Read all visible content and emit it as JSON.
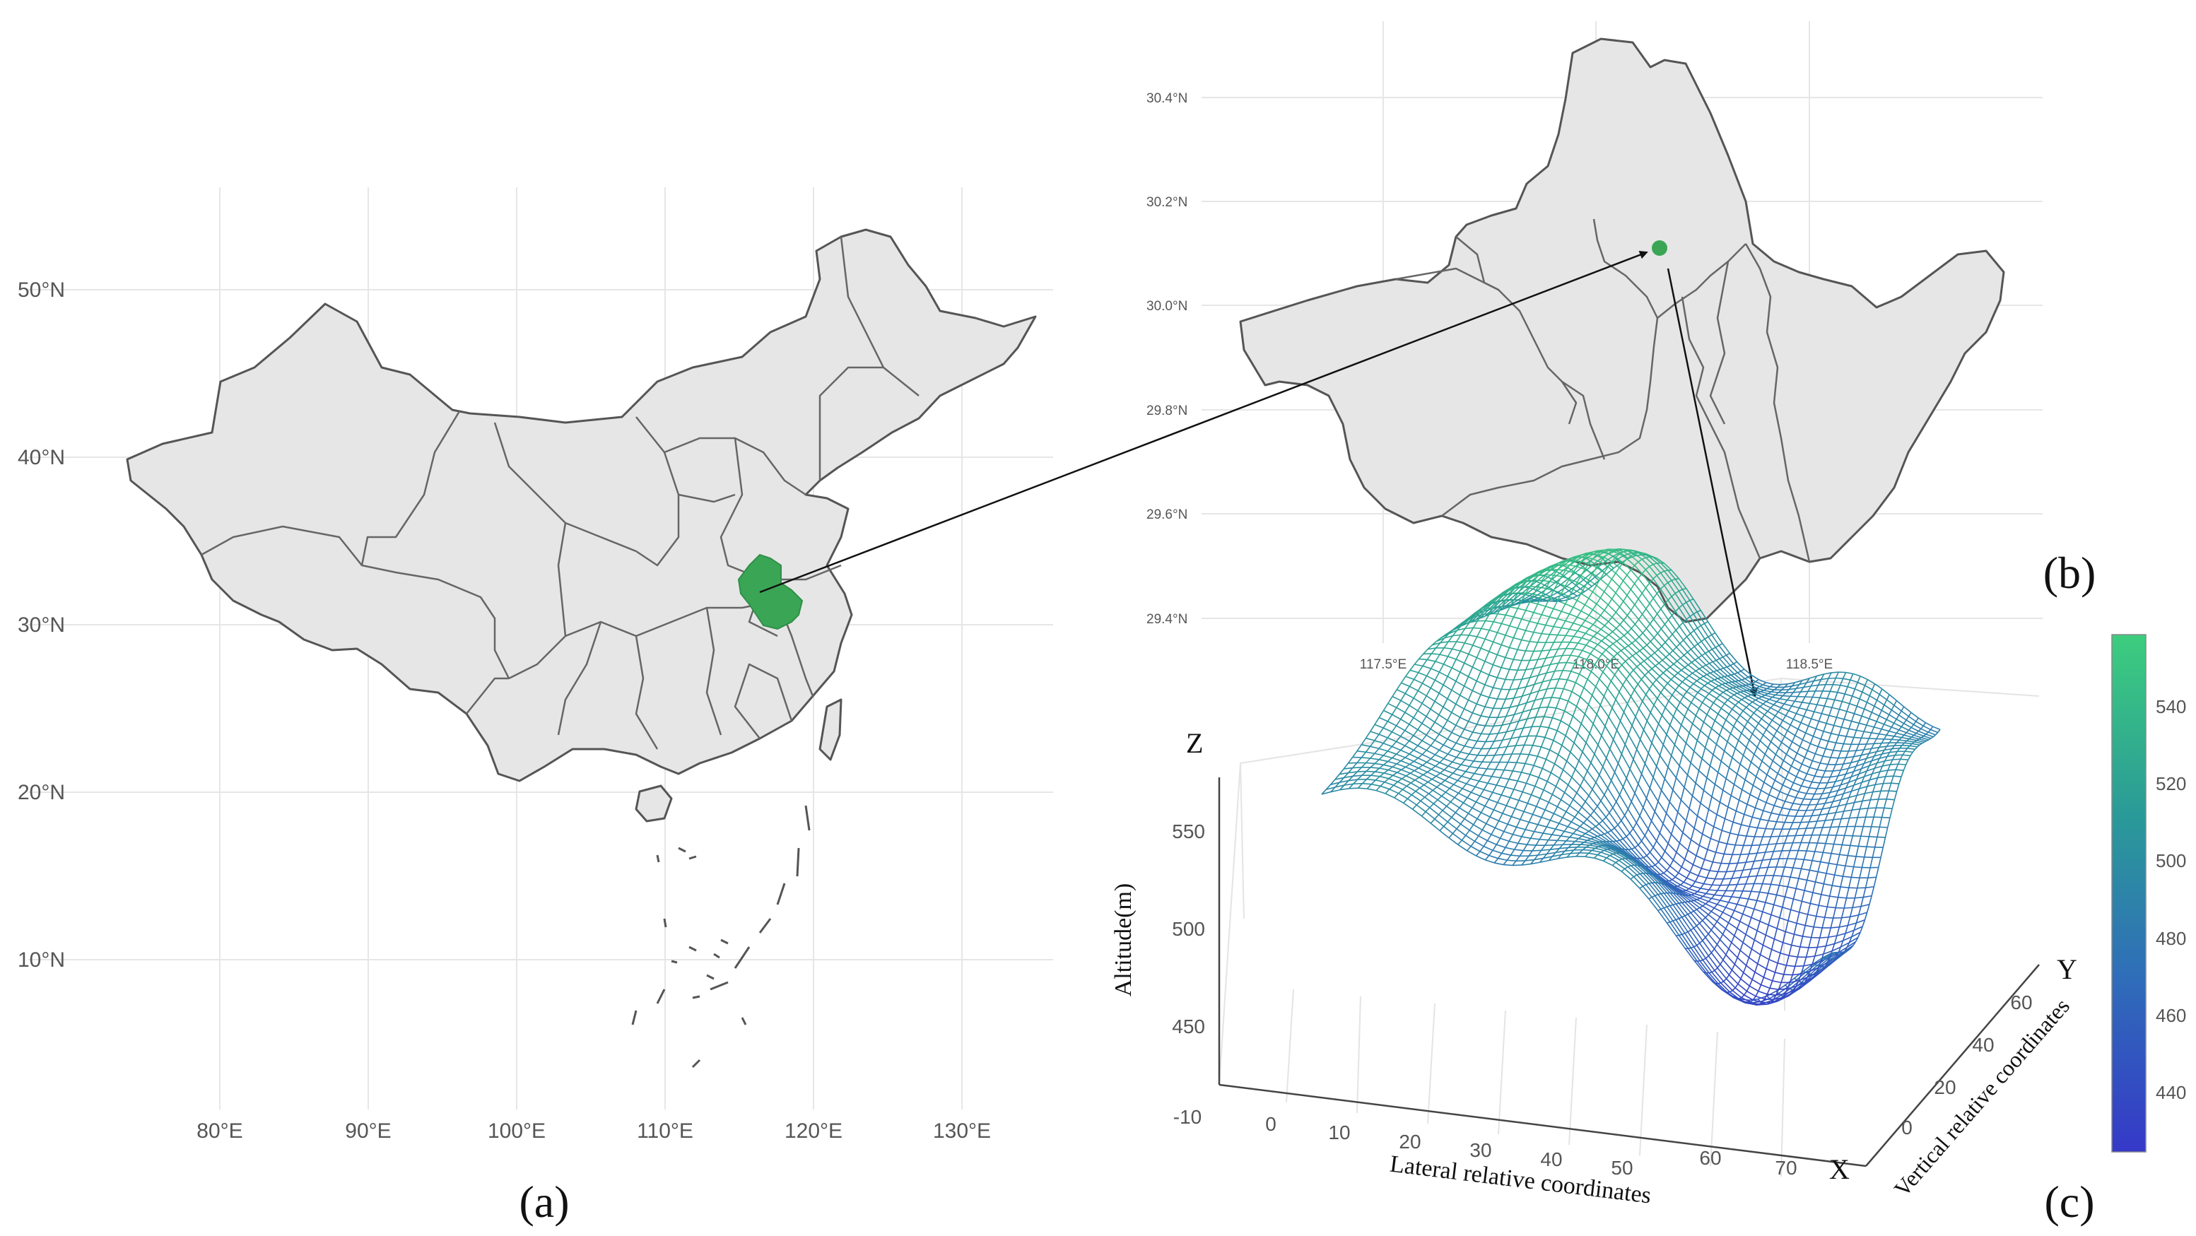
{
  "panel_a": {
    "label": "(a)",
    "lat_ticks": [
      "50°N",
      "40°N",
      "30°N",
      "20°N",
      "10°N"
    ],
    "lon_ticks": [
      "80°E",
      "90°E",
      "100°E",
      "110°E",
      "120°E",
      "130°E"
    ],
    "highlight_color": "#3aa655",
    "base_color": "#e6e6e6"
  },
  "panel_b": {
    "label": "(b)",
    "lat_ticks": [
      "30.4°N",
      "30.2°N",
      "30.0°N",
      "29.8°N",
      "29.6°N",
      "29.4°N"
    ],
    "lon_ticks": [
      "117.5°E",
      "118.0°E",
      "118.5°E"
    ],
    "point_color": "#3aa655"
  },
  "panel_c": {
    "label": "(c)",
    "z_axis_letter": "Z",
    "y_axis_letter": "Y",
    "x_axis_letter": "X",
    "z_label": "Altitude(m)",
    "x_label": "Lateral relative coordinates",
    "y_label": "Vertical relative coordinates",
    "z_ticks": [
      "550",
      "500",
      "450"
    ],
    "x_ticks": [
      "-10",
      "0",
      "10",
      "20",
      "30",
      "40",
      "50",
      "60",
      "70"
    ],
    "y_ticks": [
      "0",
      "20",
      "40",
      "60"
    ],
    "colorbar_ticks": [
      "540",
      "520",
      "500",
      "480",
      "460",
      "440"
    ],
    "colormap": [
      "#3539c8",
      "#2f6fb8",
      "#2a9a98",
      "#3dcd7e"
    ]
  },
  "chart_data": {
    "type": "surface",
    "title": "",
    "xlabel": "Lateral relative coordinates",
    "ylabel": "Vertical relative coordinates",
    "zlabel": "Altitude(m)",
    "xlim": [
      -10,
      70
    ],
    "ylim": [
      0,
      65
    ],
    "zlim": [
      430,
      560
    ],
    "colorbar_range": [
      430,
      560
    ],
    "colorbar_ticks": [
      440,
      460,
      480,
      500,
      520,
      540
    ]
  }
}
